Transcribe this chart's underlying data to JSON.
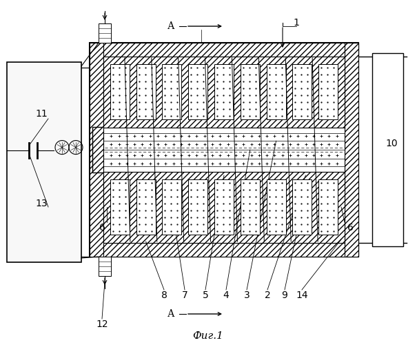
{
  "bg_color": "#ffffff",
  "line_color": "#000000",
  "title": "Фиг.1",
  "section_label": "А",
  "label_fontsize": 10,
  "title_fontsize": 11
}
